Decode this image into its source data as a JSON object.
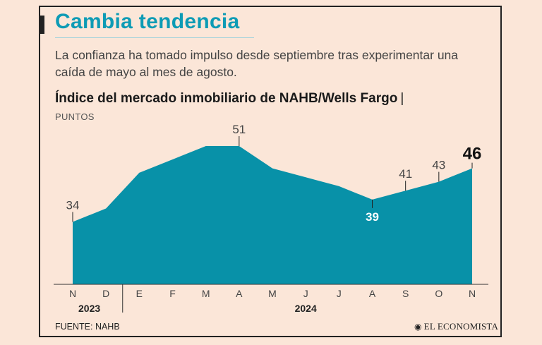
{
  "header": {
    "title": "Cambia tendencia",
    "subtitle": "La confianza ha tomado impulso desde septiembre tras experimentar una caída de mayo al mes de agosto."
  },
  "chart_data": {
    "type": "area",
    "title": "Índice del mercado inmobiliario de NAHB/Wells Fargo",
    "title_suffix": "|",
    "ylabel": "PUNTOS",
    "ylim": [
      20,
      55
    ],
    "color": "#0891a8",
    "categories": [
      "N",
      "D",
      "E",
      "F",
      "M",
      "A",
      "M",
      "J",
      "J",
      "A",
      "S",
      "O",
      "N"
    ],
    "years": [
      {
        "label": "2023",
        "from": 0,
        "to": 1
      },
      {
        "label": "2024",
        "from": 2,
        "to": 12
      }
    ],
    "series": [
      {
        "name": "Índice NAHB/Wells Fargo",
        "values": [
          34,
          37,
          45,
          48,
          51,
          51,
          46,
          44,
          42,
          39,
          41,
          43,
          46
        ]
      }
    ],
    "labels": [
      {
        "index": 0,
        "text": "34",
        "position": "above",
        "style": "normal"
      },
      {
        "index": 5,
        "text": "51",
        "position": "above",
        "style": "normal"
      },
      {
        "index": 9,
        "text": "39",
        "position": "below",
        "style": "inside"
      },
      {
        "index": 10,
        "text": "41",
        "position": "above",
        "style": "normal"
      },
      {
        "index": 11,
        "text": "43",
        "position": "above",
        "style": "normal"
      },
      {
        "index": 12,
        "text": "46",
        "position": "above",
        "style": "bold"
      }
    ]
  },
  "footer": {
    "source": "FUENTE: NAHB",
    "brand": "EL ECONOMISTA",
    "brand_mark": "◉"
  }
}
